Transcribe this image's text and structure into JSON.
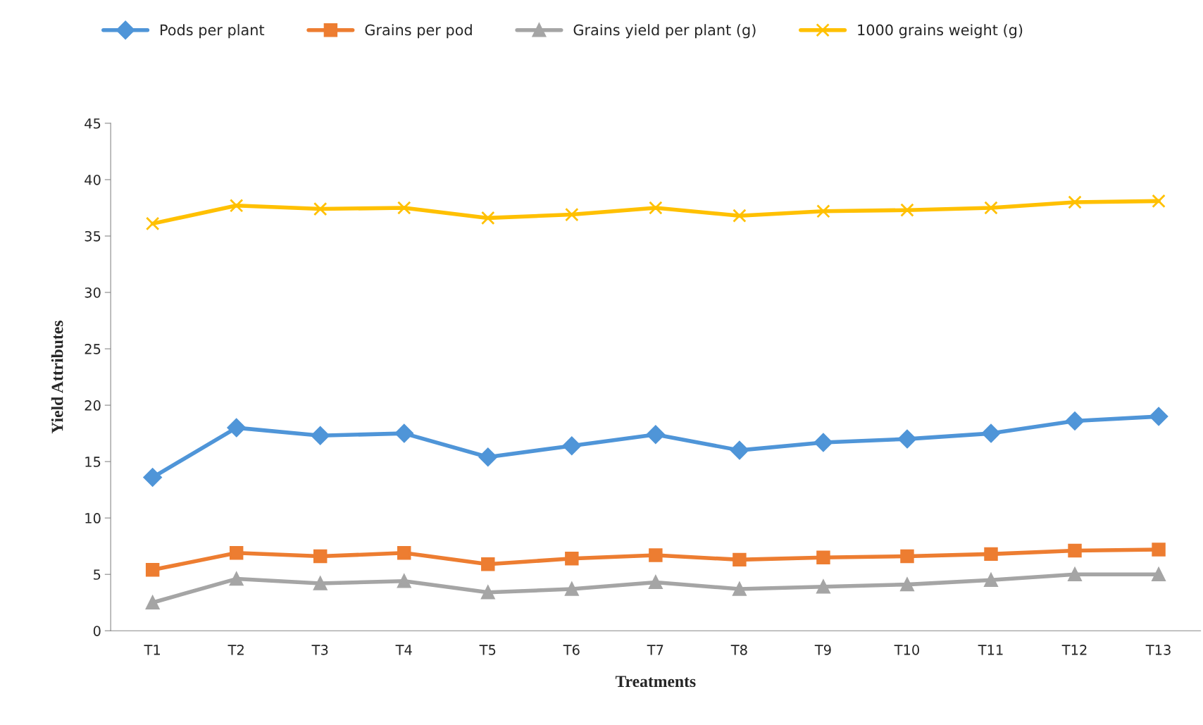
{
  "chart_data": {
    "type": "line",
    "xlabel": "Treatments",
    "ylabel": "Yield Attributes",
    "categories": [
      "T1",
      "T2",
      "T3",
      "T4",
      "T5",
      "T6",
      "T7",
      "T8",
      "T9",
      "T10",
      "T11",
      "T12",
      "T13"
    ],
    "ylim": [
      0,
      45
    ],
    "yticks": [
      0,
      5,
      10,
      15,
      20,
      25,
      30,
      35,
      40,
      45
    ],
    "grid": false,
    "legend": "top",
    "line_style": "solid",
    "series": [
      {
        "name": "Pods per plant",
        "color": "#4f95d8",
        "marker": "diamond",
        "values": [
          13.6,
          18.0,
          17.3,
          17.5,
          15.4,
          16.4,
          17.4,
          16.0,
          16.7,
          17.0,
          17.5,
          18.6,
          19.0
        ]
      },
      {
        "name": "Grains per pod",
        "color": "#ed7d31",
        "marker": "square",
        "values": [
          5.4,
          6.9,
          6.6,
          6.9,
          5.9,
          6.4,
          6.7,
          6.3,
          6.5,
          6.6,
          6.8,
          7.1,
          7.2
        ]
      },
      {
        "name": "Grains yield per plant (g)",
        "color": "#a5a5a5",
        "marker": "triangle",
        "values": [
          2.5,
          4.6,
          4.2,
          4.4,
          3.4,
          3.7,
          4.3,
          3.7,
          3.9,
          4.1,
          4.5,
          5.0,
          5.0
        ]
      },
      {
        "name": "1000 grains weight (g)",
        "color": "#ffc000",
        "marker": "cross",
        "values": [
          36.1,
          37.7,
          37.4,
          37.5,
          36.6,
          36.9,
          37.5,
          36.8,
          37.2,
          37.3,
          37.5,
          38.0,
          38.1
        ]
      }
    ]
  }
}
